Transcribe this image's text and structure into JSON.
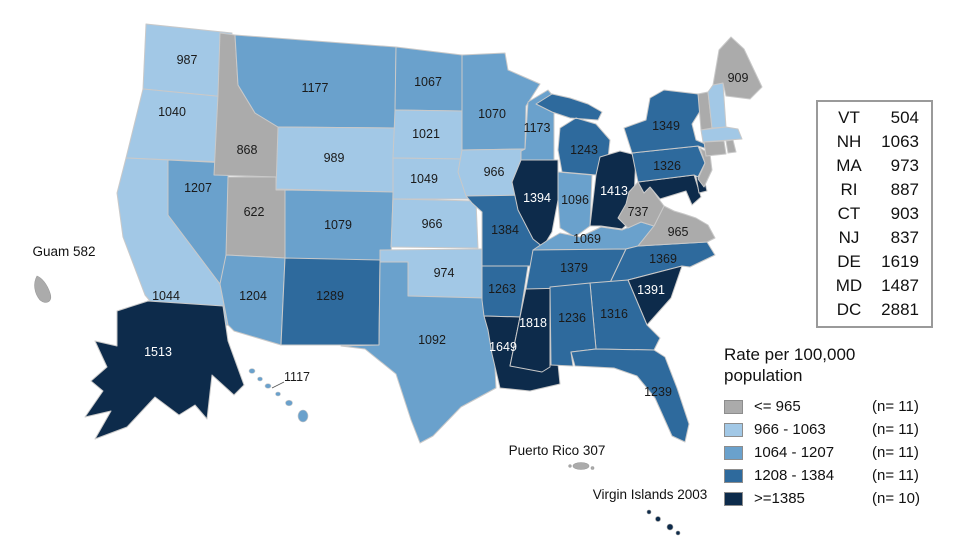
{
  "chart_data": {
    "type": "heatmap",
    "subtype": "us_choropleth_map",
    "legend_title": "Rate per 100,000 population",
    "bins": [
      {
        "label": "<= 965",
        "count_label": "(n= 11)",
        "color": "#ababab"
      },
      {
        "label": "966 - 1063",
        "count_label": "(n= 11)",
        "color": "#a2c8e6"
      },
      {
        "label": "1064 - 1207",
        "count_label": "(n= 11)",
        "color": "#6aa1cc"
      },
      {
        "label": "1208 - 1384",
        "count_label": "(n= 11)",
        "color": "#2e6a9d"
      },
      {
        "label": ">=1385",
        "count_label": "(n= 10)",
        "color": "#0d2b4b"
      }
    ],
    "states": [
      {
        "id": "WA",
        "value": 987,
        "bin": 1
      },
      {
        "id": "OR",
        "value": 1040,
        "bin": 1
      },
      {
        "id": "CA",
        "value": 1044,
        "bin": 1
      },
      {
        "id": "ID",
        "value": 868,
        "bin": 0
      },
      {
        "id": "NV",
        "value": 1207,
        "bin": 2
      },
      {
        "id": "UT",
        "value": 622,
        "bin": 0
      },
      {
        "id": "AZ",
        "value": 1204,
        "bin": 2
      },
      {
        "id": "MT",
        "value": 1177,
        "bin": 2
      },
      {
        "id": "WY",
        "value": 989,
        "bin": 1
      },
      {
        "id": "CO",
        "value": 1079,
        "bin": 2
      },
      {
        "id": "NM",
        "value": 1289,
        "bin": 3
      },
      {
        "id": "ND",
        "value": 1067,
        "bin": 2
      },
      {
        "id": "SD",
        "value": 1021,
        "bin": 1
      },
      {
        "id": "NE",
        "value": 1049,
        "bin": 1
      },
      {
        "id": "KS",
        "value": 966,
        "bin": 1
      },
      {
        "id": "OK",
        "value": 974,
        "bin": 1
      },
      {
        "id": "TX",
        "value": 1092,
        "bin": 2
      },
      {
        "id": "MN",
        "value": 1070,
        "bin": 2
      },
      {
        "id": "IA",
        "value": 966,
        "bin": 1
      },
      {
        "id": "MO",
        "value": 1384,
        "bin": 3
      },
      {
        "id": "AR",
        "value": 1263,
        "bin": 3
      },
      {
        "id": "LA",
        "value": 1649,
        "bin": 4
      },
      {
        "id": "WI",
        "value": 1173,
        "bin": 2
      },
      {
        "id": "IL",
        "value": 1394,
        "bin": 4
      },
      {
        "id": "MI",
        "value": 1243,
        "bin": 3
      },
      {
        "id": "IN",
        "value": 1096,
        "bin": 2
      },
      {
        "id": "OH",
        "value": 1413,
        "bin": 4
      },
      {
        "id": "KY",
        "value": 1069,
        "bin": 2
      },
      {
        "id": "TN",
        "value": 1379,
        "bin": 3
      },
      {
        "id": "MS",
        "value": 1818,
        "bin": 4
      },
      {
        "id": "AL",
        "value": 1236,
        "bin": 3
      },
      {
        "id": "GA",
        "value": 1316,
        "bin": 3
      },
      {
        "id": "FL",
        "value": 1239,
        "bin": 3
      },
      {
        "id": "SC",
        "value": 1391,
        "bin": 4
      },
      {
        "id": "NC",
        "value": 1369,
        "bin": 3
      },
      {
        "id": "VA",
        "value": 965,
        "bin": 0
      },
      {
        "id": "WV",
        "value": 737,
        "bin": 0
      },
      {
        "id": "PA",
        "value": 1326,
        "bin": 3
      },
      {
        "id": "NY",
        "value": 1349,
        "bin": 3
      },
      {
        "id": "ME",
        "value": 909,
        "bin": 0
      },
      {
        "id": "VT",
        "value": 504,
        "bin": 0
      },
      {
        "id": "NH",
        "value": 1063,
        "bin": 1
      },
      {
        "id": "MA",
        "value": 973,
        "bin": 1
      },
      {
        "id": "RI",
        "value": 887,
        "bin": 0
      },
      {
        "id": "CT",
        "value": 903,
        "bin": 0
      },
      {
        "id": "NJ",
        "value": 837,
        "bin": 0
      },
      {
        "id": "DE",
        "value": 1619,
        "bin": 4
      },
      {
        "id": "MD",
        "value": 1487,
        "bin": 4
      },
      {
        "id": "DC",
        "value": 2881,
        "bin": 4
      },
      {
        "id": "AK",
        "value": 1513,
        "bin": 4
      },
      {
        "id": "HI",
        "value": 1117,
        "bin": 2
      }
    ],
    "territories": [
      {
        "id": "GU",
        "label": "Guam 582",
        "value": 582,
        "bin": 0
      },
      {
        "id": "PR",
        "label": "Puerto Rico 307",
        "value": 307,
        "bin": 0
      },
      {
        "id": "VI",
        "label": "Virgin Islands 2003",
        "value": 2003,
        "bin": 4
      }
    ]
  },
  "legend": {
    "title_line1": "Rate per 100,000",
    "title_line2": "population"
  },
  "side_panel": {
    "items": [
      {
        "abbr": "VT",
        "value": "504"
      },
      {
        "abbr": "NH",
        "value": "1063"
      },
      {
        "abbr": "MA",
        "value": "973"
      },
      {
        "abbr": "RI",
        "value": "887"
      },
      {
        "abbr": "CT",
        "value": "903"
      },
      {
        "abbr": "NJ",
        "value": "837"
      },
      {
        "abbr": "DE",
        "value": "1619"
      },
      {
        "abbr": "MD",
        "value": "1487"
      },
      {
        "abbr": "DC",
        "value": "2881"
      }
    ]
  },
  "text_colors": {
    "on_dark": "#ffffff",
    "on_light": "#1a1a1a"
  }
}
